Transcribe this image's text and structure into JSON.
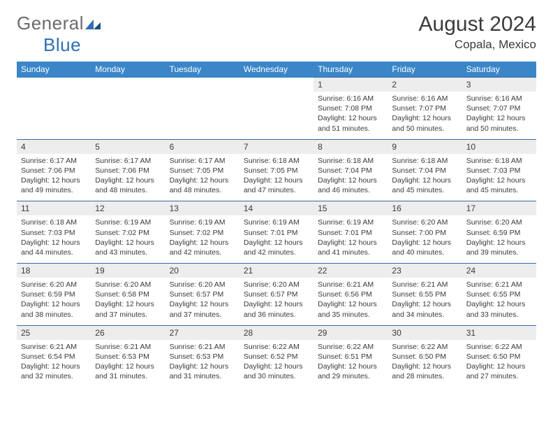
{
  "logo": {
    "word1": "General",
    "word2": "Blue"
  },
  "title": "August 2024",
  "location": "Copala, Mexico",
  "colors": {
    "header_bg": "#3a86c8",
    "header_text": "#ffffff",
    "daynum_bg": "#ededed",
    "rule": "#3a6aa0",
    "page_bg": "#ffffff",
    "body_text": "#3a3a3a",
    "logo_gray": "#6b6b6b",
    "logo_blue": "#2f6fb3"
  },
  "dayNames": [
    "Sunday",
    "Monday",
    "Tuesday",
    "Wednesday",
    "Thursday",
    "Friday",
    "Saturday"
  ],
  "weeks": [
    [
      null,
      null,
      null,
      null,
      {
        "n": "1",
        "sunrise": "6:16 AM",
        "sunset": "7:08 PM",
        "daylight": "12 hours and 51 minutes."
      },
      {
        "n": "2",
        "sunrise": "6:16 AM",
        "sunset": "7:07 PM",
        "daylight": "12 hours and 50 minutes."
      },
      {
        "n": "3",
        "sunrise": "6:16 AM",
        "sunset": "7:07 PM",
        "daylight": "12 hours and 50 minutes."
      }
    ],
    [
      {
        "n": "4",
        "sunrise": "6:17 AM",
        "sunset": "7:06 PM",
        "daylight": "12 hours and 49 minutes."
      },
      {
        "n": "5",
        "sunrise": "6:17 AM",
        "sunset": "7:06 PM",
        "daylight": "12 hours and 48 minutes."
      },
      {
        "n": "6",
        "sunrise": "6:17 AM",
        "sunset": "7:05 PM",
        "daylight": "12 hours and 48 minutes."
      },
      {
        "n": "7",
        "sunrise": "6:18 AM",
        "sunset": "7:05 PM",
        "daylight": "12 hours and 47 minutes."
      },
      {
        "n": "8",
        "sunrise": "6:18 AM",
        "sunset": "7:04 PM",
        "daylight": "12 hours and 46 minutes."
      },
      {
        "n": "9",
        "sunrise": "6:18 AM",
        "sunset": "7:04 PM",
        "daylight": "12 hours and 45 minutes."
      },
      {
        "n": "10",
        "sunrise": "6:18 AM",
        "sunset": "7:03 PM",
        "daylight": "12 hours and 45 minutes."
      }
    ],
    [
      {
        "n": "11",
        "sunrise": "6:18 AM",
        "sunset": "7:03 PM",
        "daylight": "12 hours and 44 minutes."
      },
      {
        "n": "12",
        "sunrise": "6:19 AM",
        "sunset": "7:02 PM",
        "daylight": "12 hours and 43 minutes."
      },
      {
        "n": "13",
        "sunrise": "6:19 AM",
        "sunset": "7:02 PM",
        "daylight": "12 hours and 42 minutes."
      },
      {
        "n": "14",
        "sunrise": "6:19 AM",
        "sunset": "7:01 PM",
        "daylight": "12 hours and 42 minutes."
      },
      {
        "n": "15",
        "sunrise": "6:19 AM",
        "sunset": "7:01 PM",
        "daylight": "12 hours and 41 minutes."
      },
      {
        "n": "16",
        "sunrise": "6:20 AM",
        "sunset": "7:00 PM",
        "daylight": "12 hours and 40 minutes."
      },
      {
        "n": "17",
        "sunrise": "6:20 AM",
        "sunset": "6:59 PM",
        "daylight": "12 hours and 39 minutes."
      }
    ],
    [
      {
        "n": "18",
        "sunrise": "6:20 AM",
        "sunset": "6:59 PM",
        "daylight": "12 hours and 38 minutes."
      },
      {
        "n": "19",
        "sunrise": "6:20 AM",
        "sunset": "6:58 PM",
        "daylight": "12 hours and 37 minutes."
      },
      {
        "n": "20",
        "sunrise": "6:20 AM",
        "sunset": "6:57 PM",
        "daylight": "12 hours and 37 minutes."
      },
      {
        "n": "21",
        "sunrise": "6:20 AM",
        "sunset": "6:57 PM",
        "daylight": "12 hours and 36 minutes."
      },
      {
        "n": "22",
        "sunrise": "6:21 AM",
        "sunset": "6:56 PM",
        "daylight": "12 hours and 35 minutes."
      },
      {
        "n": "23",
        "sunrise": "6:21 AM",
        "sunset": "6:55 PM",
        "daylight": "12 hours and 34 minutes."
      },
      {
        "n": "24",
        "sunrise": "6:21 AM",
        "sunset": "6:55 PM",
        "daylight": "12 hours and 33 minutes."
      }
    ],
    [
      {
        "n": "25",
        "sunrise": "6:21 AM",
        "sunset": "6:54 PM",
        "daylight": "12 hours and 32 minutes."
      },
      {
        "n": "26",
        "sunrise": "6:21 AM",
        "sunset": "6:53 PM",
        "daylight": "12 hours and 31 minutes."
      },
      {
        "n": "27",
        "sunrise": "6:21 AM",
        "sunset": "6:53 PM",
        "daylight": "12 hours and 31 minutes."
      },
      {
        "n": "28",
        "sunrise": "6:22 AM",
        "sunset": "6:52 PM",
        "daylight": "12 hours and 30 minutes."
      },
      {
        "n": "29",
        "sunrise": "6:22 AM",
        "sunset": "6:51 PM",
        "daylight": "12 hours and 29 minutes."
      },
      {
        "n": "30",
        "sunrise": "6:22 AM",
        "sunset": "6:50 PM",
        "daylight": "12 hours and 28 minutes."
      },
      {
        "n": "31",
        "sunrise": "6:22 AM",
        "sunset": "6:50 PM",
        "daylight": "12 hours and 27 minutes."
      }
    ]
  ]
}
